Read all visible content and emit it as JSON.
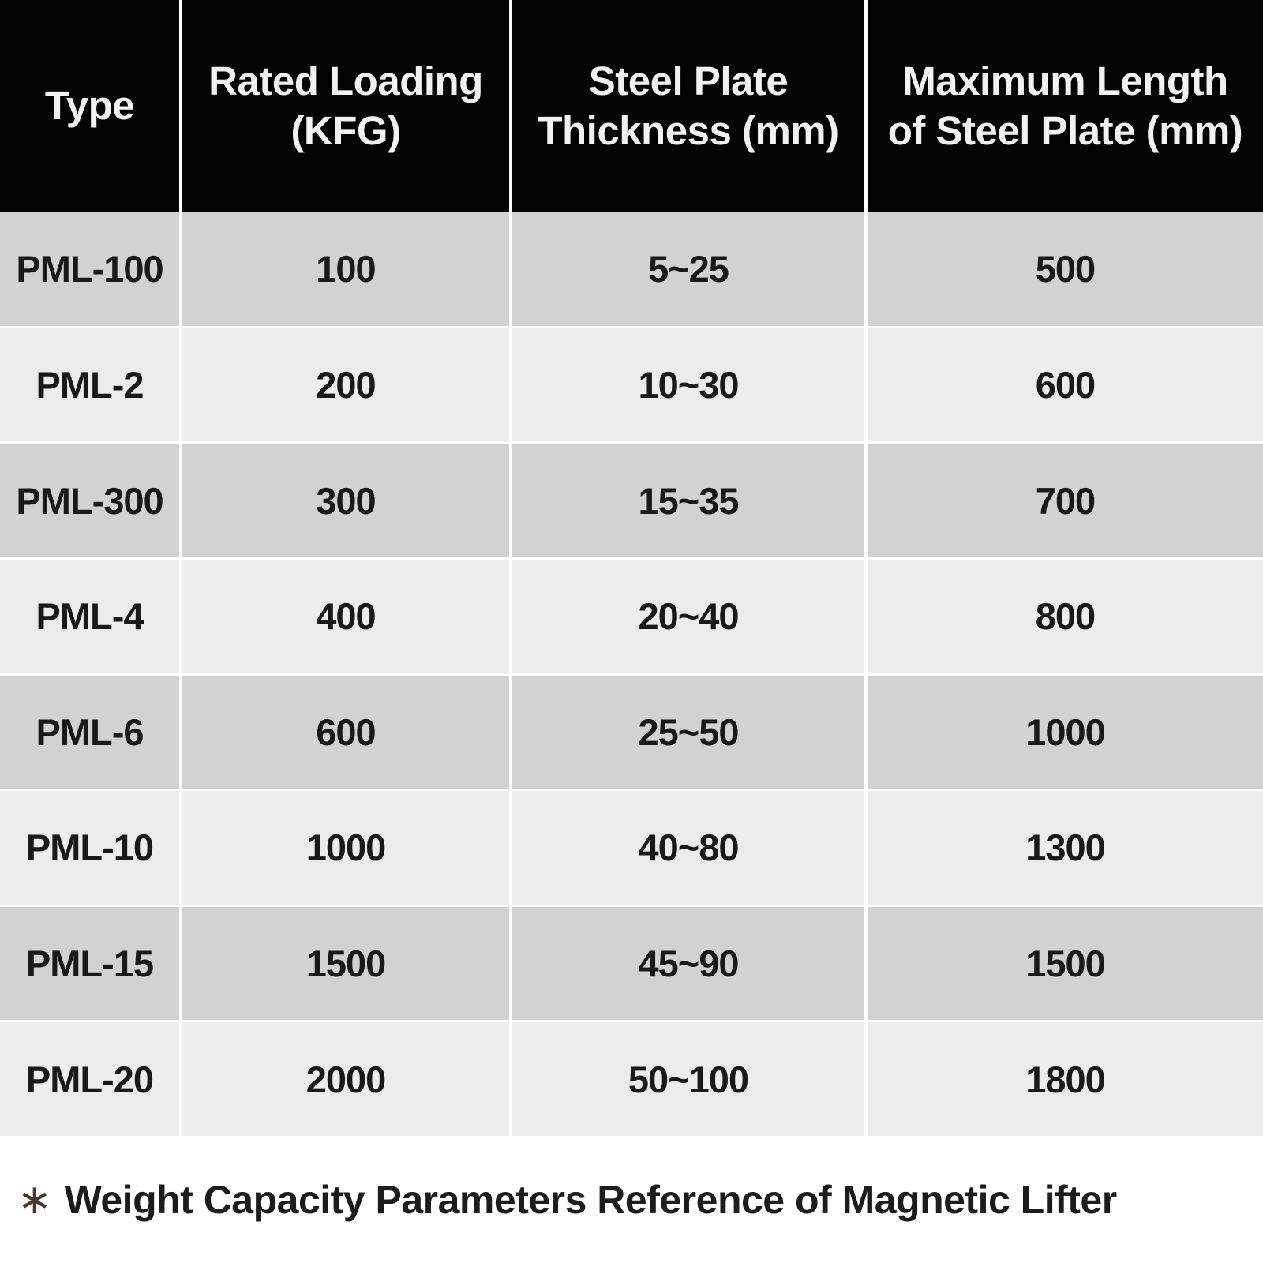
{
  "chart_data": {
    "type": "table",
    "title": "",
    "columns": [
      "Type",
      "Rated Loading (KFG)",
      "Steel Plate Thickness (mm)",
      "Maximum Length of Steel Plate (mm)"
    ],
    "rows": [
      [
        "PML-100",
        "100",
        "5~25",
        "500"
      ],
      [
        "PML-2",
        "200",
        "10~30",
        "600"
      ],
      [
        "PML-300",
        "300",
        "15~35",
        "700"
      ],
      [
        "PML-4",
        "400",
        "20~40",
        "800"
      ],
      [
        "PML-6",
        "600",
        "25~50",
        "1000"
      ],
      [
        "PML-10",
        "1000",
        "40~80",
        "1300"
      ],
      [
        "PML-15",
        "1500",
        "45~90",
        "1500"
      ],
      [
        "PML-20",
        "2000",
        "50~100",
        "1800"
      ]
    ],
    "footnote": "∗ Weight Capacity Parameters Reference of Magnetic Lifter",
    "layout": {
      "grid": "white gaps between cells",
      "legend": "none",
      "header_rows": 1
    }
  },
  "table": {
    "header": [
      {
        "line1": "Type",
        "line2": ""
      },
      {
        "line1": "Rated Loading",
        "line2": "(KFG)"
      },
      {
        "line1": "Steel Plate",
        "line2": "Thickness (mm)"
      },
      {
        "line1": "Maximum Length",
        "line2": "of Steel Plate (mm)"
      }
    ]
  },
  "footnote": {
    "marker": "∗",
    "text": "Weight Capacity Parameters Reference of Magnetic Lifter"
  },
  "colors": {
    "header_bg": "#030303",
    "header_text": "#f2f2f2",
    "row_dark": "#d2d2d2",
    "row_light": "#ececec",
    "cell_text": "#191919",
    "footnote_text": "#1c1c1c",
    "footnote_marker": "#4a3531",
    "grid_gap": "#ffffff",
    "page_bg": "#ffffff"
  }
}
